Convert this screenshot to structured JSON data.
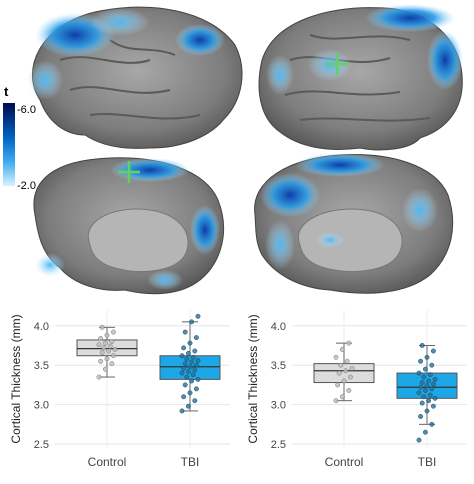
{
  "colorbar": {
    "title": "t",
    "max_label": "-6.0",
    "min_label": "-2.0"
  },
  "chart_data": [
    {
      "type": "box",
      "ylabel": "Cortical Thickness (mm)",
      "xlabel": "",
      "categories": [
        "Control",
        "TBI"
      ],
      "ylim": [
        2.45,
        4.2
      ],
      "yticks": [
        "2.5",
        "3.0",
        "3.5",
        "4.0"
      ],
      "grid": true,
      "colors": [
        "#dcdcdc",
        "#1ea7e6"
      ],
      "boxes": [
        {
          "q1": 3.62,
          "median": 3.71,
          "q3": 3.82,
          "min": 3.35,
          "max": 3.98
        },
        {
          "q1": 3.32,
          "median": 3.48,
          "q3": 3.62,
          "min": 2.92,
          "max": 4.05
        }
      ],
      "points": [
        [
          3.35,
          3.45,
          3.52,
          3.55,
          3.58,
          3.62,
          3.66,
          3.68,
          3.7,
          3.72,
          3.74,
          3.76,
          3.78,
          3.8,
          3.84,
          3.88,
          3.92,
          3.98
        ],
        [
          2.92,
          2.98,
          3.05,
          3.1,
          3.15,
          3.2,
          3.25,
          3.3,
          3.32,
          3.35,
          3.38,
          3.4,
          3.42,
          3.44,
          3.46,
          3.48,
          3.5,
          3.52,
          3.54,
          3.56,
          3.58,
          3.6,
          3.62,
          3.65,
          3.68,
          3.72,
          3.78,
          3.85,
          3.92,
          4.05,
          4.12
        ]
      ]
    },
    {
      "type": "box",
      "ylabel": "Cortical Thickness (mm)",
      "xlabel": "",
      "categories": [
        "Control",
        "TBI"
      ],
      "ylim": [
        2.45,
        4.2
      ],
      "yticks": [
        "2.5",
        "3.0",
        "3.5",
        "4.0"
      ],
      "grid": true,
      "colors": [
        "#dcdcdc",
        "#1ea7e6"
      ],
      "boxes": [
        {
          "q1": 3.28,
          "median": 3.43,
          "q3": 3.52,
          "min": 3.05,
          "max": 3.78
        },
        {
          "q1": 3.08,
          "median": 3.22,
          "q3": 3.4,
          "min": 2.75,
          "max": 3.75
        }
      ],
      "points": [
        [
          3.05,
          3.1,
          3.18,
          3.25,
          3.3,
          3.35,
          3.4,
          3.43,
          3.46,
          3.5,
          3.55,
          3.6,
          3.7,
          3.78
        ],
        [
          2.55,
          2.65,
          2.75,
          2.85,
          2.92,
          2.98,
          3.02,
          3.05,
          3.08,
          3.1,
          3.12,
          3.15,
          3.18,
          3.2,
          3.22,
          3.24,
          3.26,
          3.28,
          3.3,
          3.32,
          3.35,
          3.38,
          3.4,
          3.45,
          3.5,
          3.55,
          3.6,
          3.68,
          3.75
        ]
      ]
    }
  ]
}
